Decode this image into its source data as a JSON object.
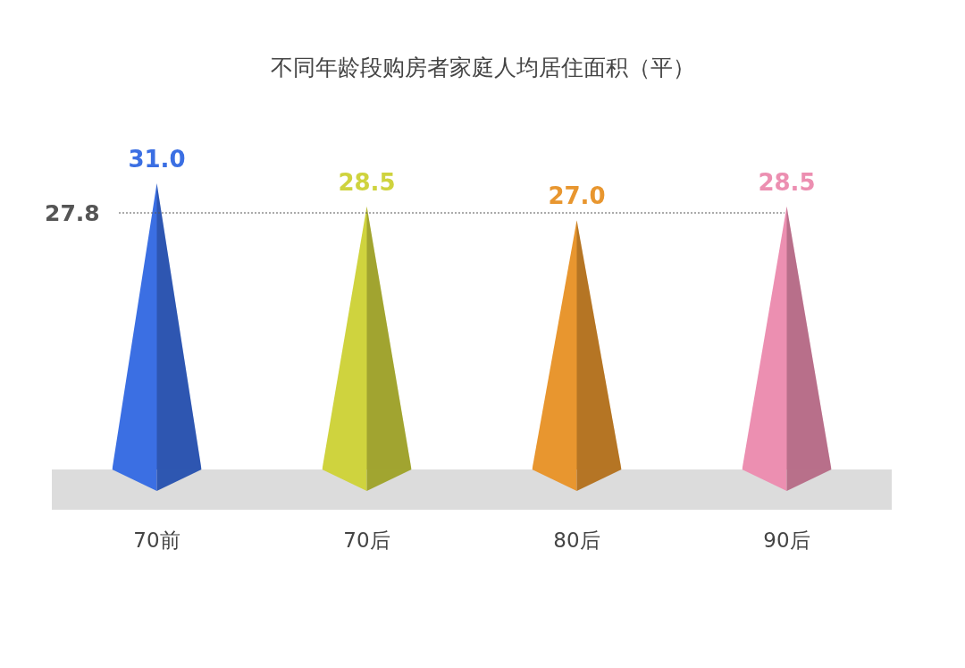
{
  "chart_data": {
    "type": "bar",
    "title": "不同年龄段购房者家庭人均居住面积（平）",
    "categories": [
      "70前",
      "70后",
      "80后",
      "90后"
    ],
    "values": [
      31.0,
      28.5,
      27.0,
      28.5
    ],
    "colors": [
      "#3b6fe3",
      "#cfd33e",
      "#e8962f",
      "#ec8fb1"
    ],
    "value_labels": [
      "31.0",
      "28.5",
      "27.0",
      "28.5"
    ],
    "ref_lines": [
      {
        "axis": "y",
        "value": 27.8,
        "label": "27.8",
        "color": "#555555",
        "line_style": "dotted"
      }
    ]
  }
}
